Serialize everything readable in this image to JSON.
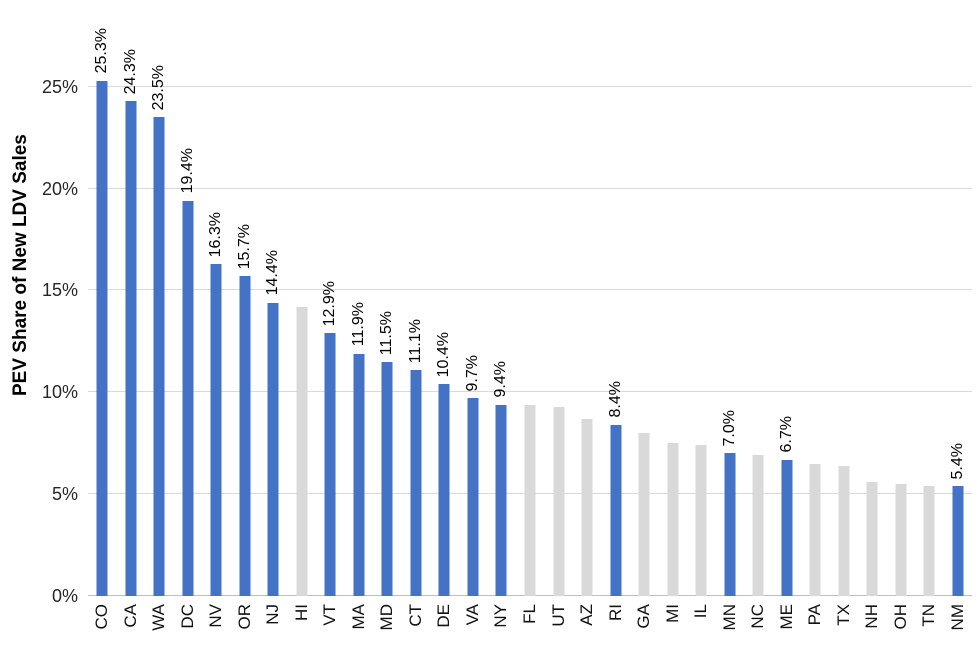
{
  "chart_data": {
    "type": "bar",
    "title": "",
    "xlabel": "",
    "ylabel": "PEV Share of New LDV Sales",
    "ylim": [
      0,
      27
    ],
    "grid": true,
    "legend": null,
    "ytick_values": [
      0,
      5,
      10,
      15,
      20,
      25
    ],
    "ytick_labels": [
      "0%",
      "5%",
      "10%",
      "15%",
      "20%",
      "25%"
    ],
    "categories": [
      "CO",
      "CA",
      "WA",
      "DC",
      "NV",
      "OR",
      "NJ",
      "HI",
      "VT",
      "MA",
      "MD",
      "CT",
      "DE",
      "VA",
      "NY",
      "FL",
      "UT",
      "AZ",
      "RI",
      "GA",
      "MI",
      "IL",
      "MN",
      "NC",
      "ME",
      "PA",
      "TX",
      "NH",
      "OH",
      "TN",
      "NM"
    ],
    "values": [
      25.3,
      24.3,
      23.5,
      19.4,
      16.3,
      15.7,
      14.4,
      14.2,
      12.9,
      11.9,
      11.5,
      11.1,
      10.4,
      9.7,
      9.4,
      9.4,
      9.3,
      8.7,
      8.4,
      8.0,
      7.5,
      7.4,
      7.0,
      6.9,
      6.7,
      6.5,
      6.4,
      5.6,
      5.5,
      5.4,
      5.4
    ],
    "data_labels": [
      "25.3%",
      "24.3%",
      "23.5%",
      "19.4%",
      "16.3%",
      "15.7%",
      "14.4%",
      "",
      "12.9%",
      "11.9%",
      "11.5%",
      "11.1%",
      "10.4%",
      "9.7%",
      "9.4%",
      "",
      "",
      "",
      "8.4%",
      "",
      "",
      "",
      "7.0%",
      "",
      "6.7%",
      "",
      "",
      "",
      "",
      "",
      "5.4%"
    ],
    "highlighted": [
      true,
      true,
      true,
      true,
      true,
      true,
      true,
      false,
      true,
      true,
      true,
      true,
      true,
      true,
      true,
      false,
      false,
      false,
      true,
      false,
      false,
      false,
      true,
      false,
      true,
      false,
      false,
      false,
      false,
      false,
      true
    ],
    "colors": {
      "highlight": "#4472C4",
      "muted": "#D9D9D9",
      "gridline": "#D9D9D9",
      "axis_line": "#BFBFBF",
      "label_text": "#000000"
    }
  }
}
